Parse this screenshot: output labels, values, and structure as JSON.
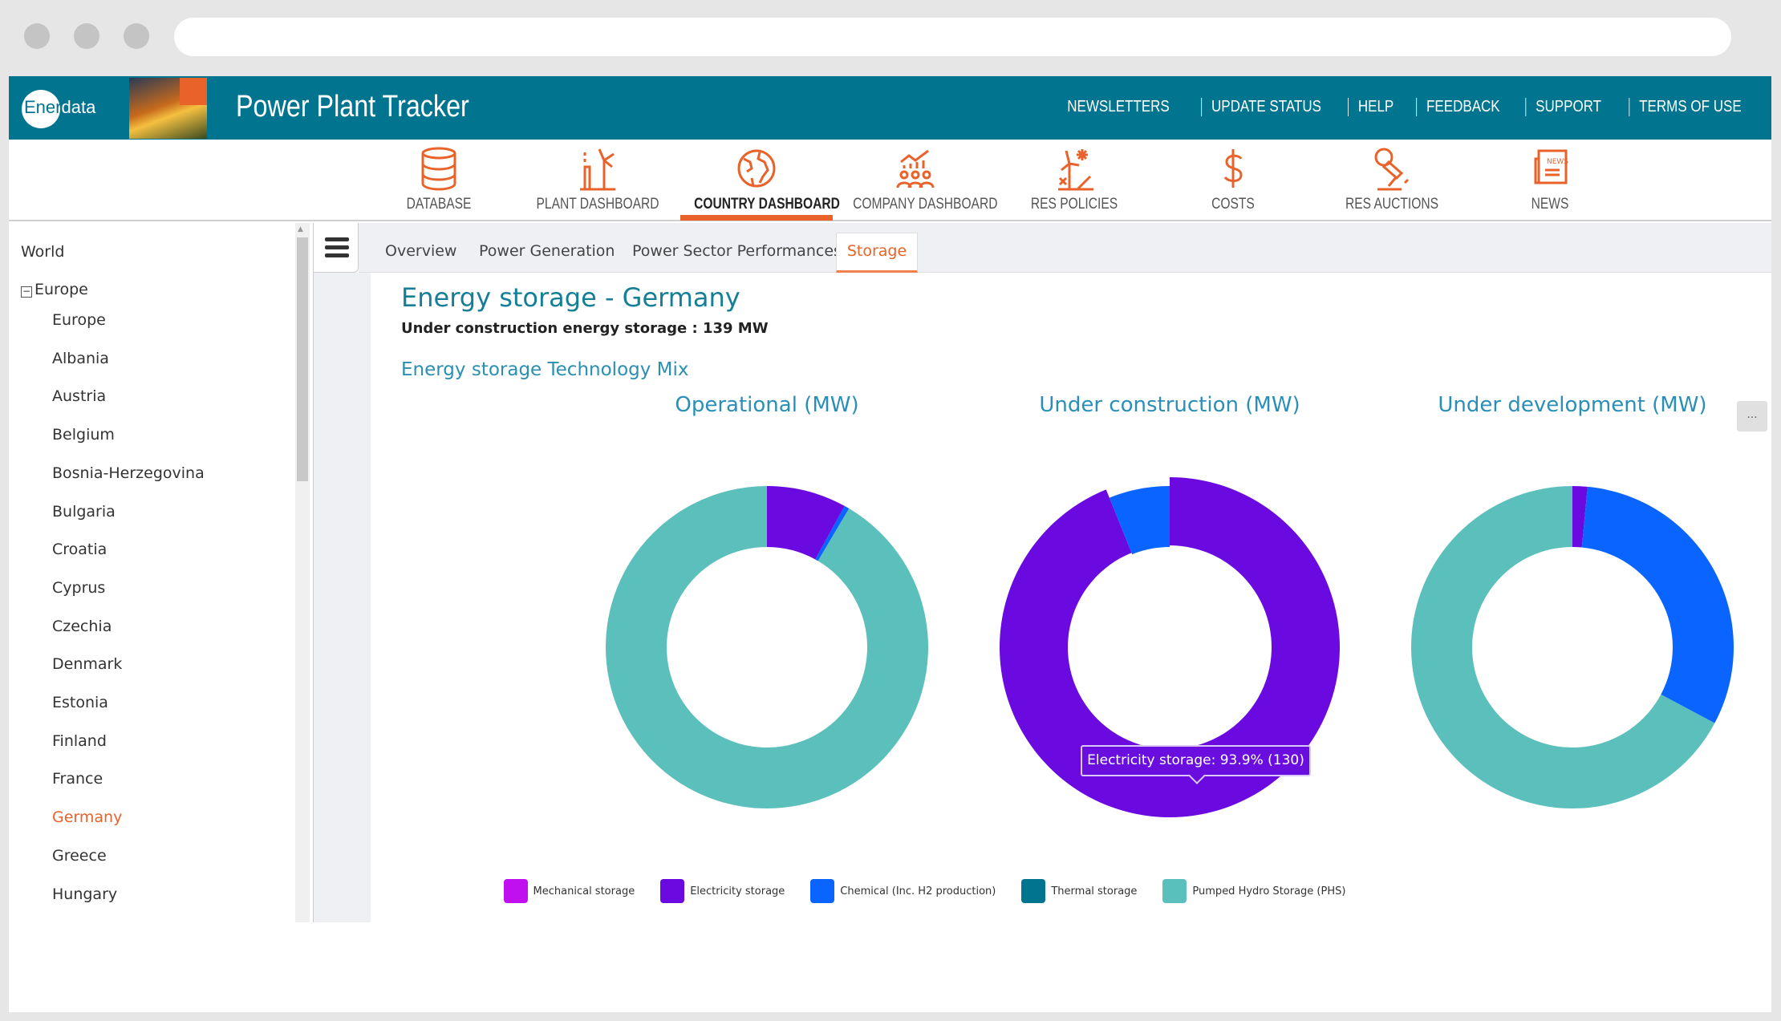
{
  "app": {
    "logo_text_a": "Ener",
    "logo_text_b": "data",
    "title": "Power Plant Tracker",
    "brand_image_text": "Power Plant Tracker"
  },
  "top_links": [
    "NEWSLETTERS",
    "UPDATE STATUS",
    "HELP",
    "FEEDBACK",
    "SUPPORT",
    "TERMS OF USE"
  ],
  "nav": [
    {
      "label": "DATABASE",
      "icon": "database-icon"
    },
    {
      "label": "PLANT DASHBOARD",
      "icon": "power-plant-icon"
    },
    {
      "label": "COUNTRY DASHBOARD",
      "icon": "globe-icon",
      "active": true
    },
    {
      "label": "COMPANY DASHBOARD",
      "icon": "company-chart-icon"
    },
    {
      "label": "RES POLICIES",
      "icon": "renewable-icon"
    },
    {
      "label": "COSTS",
      "icon": "dollar-icon"
    },
    {
      "label": "RES AUCTIONS",
      "icon": "auction-gavel-icon"
    },
    {
      "label": "NEWS",
      "icon": "newspaper-icon"
    }
  ],
  "sidebar": {
    "root": "World",
    "group": "Europe",
    "items": [
      "Europe",
      "Albania",
      "Austria",
      "Belgium",
      "Bosnia-Herzegovina",
      "Bulgaria",
      "Croatia",
      "Cyprus",
      "Czechia",
      "Denmark",
      "Estonia",
      "Finland",
      "France",
      "Germany",
      "Greece",
      "Hungary"
    ],
    "selected": "Germany"
  },
  "tabs": [
    "Overview",
    "Power Generation",
    "Power Sector Performances",
    "Storage"
  ],
  "active_tab": "Storage",
  "page": {
    "title": "Energy storage - Germany",
    "subtitle": "Under construction energy storage : 139 MW",
    "section": "Energy storage Technology Mix",
    "menu_button": "..."
  },
  "colors": {
    "accent": "#e8622a",
    "header": "#017590",
    "Mechanical storage": "#c010f0",
    "Electricity storage": "#6a0ae0",
    "Chemical (Inc. H2 production)": "#0a64ff",
    "Thermal storage": "#017590",
    "Pumped Hydro Storage (PHS)": "#5bbfbb"
  },
  "tooltip": "Electricity storage: 93.9% (130)",
  "chart_data": [
    {
      "type": "pie",
      "donut": true,
      "title": "Operational (MW)",
      "categories": [
        "Mechanical storage",
        "Electricity storage",
        "Chemical (Inc. H2 production)",
        "Thermal storage",
        "Pumped Hydro Storage (PHS)"
      ],
      "values_pct": [
        0,
        8.0,
        0.5,
        0,
        91.5
      ],
      "legend": "bottom"
    },
    {
      "type": "pie",
      "donut": true,
      "title": "Under construction (MW)",
      "categories": [
        "Mechanical storage",
        "Electricity storage",
        "Chemical (Inc. H2 production)",
        "Thermal storage",
        "Pumped Hydro Storage (PHS)"
      ],
      "values_pct": [
        0,
        93.9,
        6.1,
        0,
        0
      ],
      "values_mw": {
        "Electricity storage": 130
      },
      "highlighted": "Electricity storage",
      "legend": "bottom"
    },
    {
      "type": "pie",
      "donut": true,
      "title": "Under development (MW)",
      "categories": [
        "Mechanical storage",
        "Electricity storage",
        "Chemical (Inc. H2 production)",
        "Thermal storage",
        "Pumped Hydro Storage (PHS)"
      ],
      "values_pct": [
        0,
        1.5,
        31.3,
        0,
        67.2
      ],
      "legend": "bottom"
    }
  ],
  "legend": [
    "Mechanical storage",
    "Electricity storage",
    "Chemical (Inc. H2 production)",
    "Thermal storage",
    "Pumped Hydro Storage (PHS)"
  ]
}
